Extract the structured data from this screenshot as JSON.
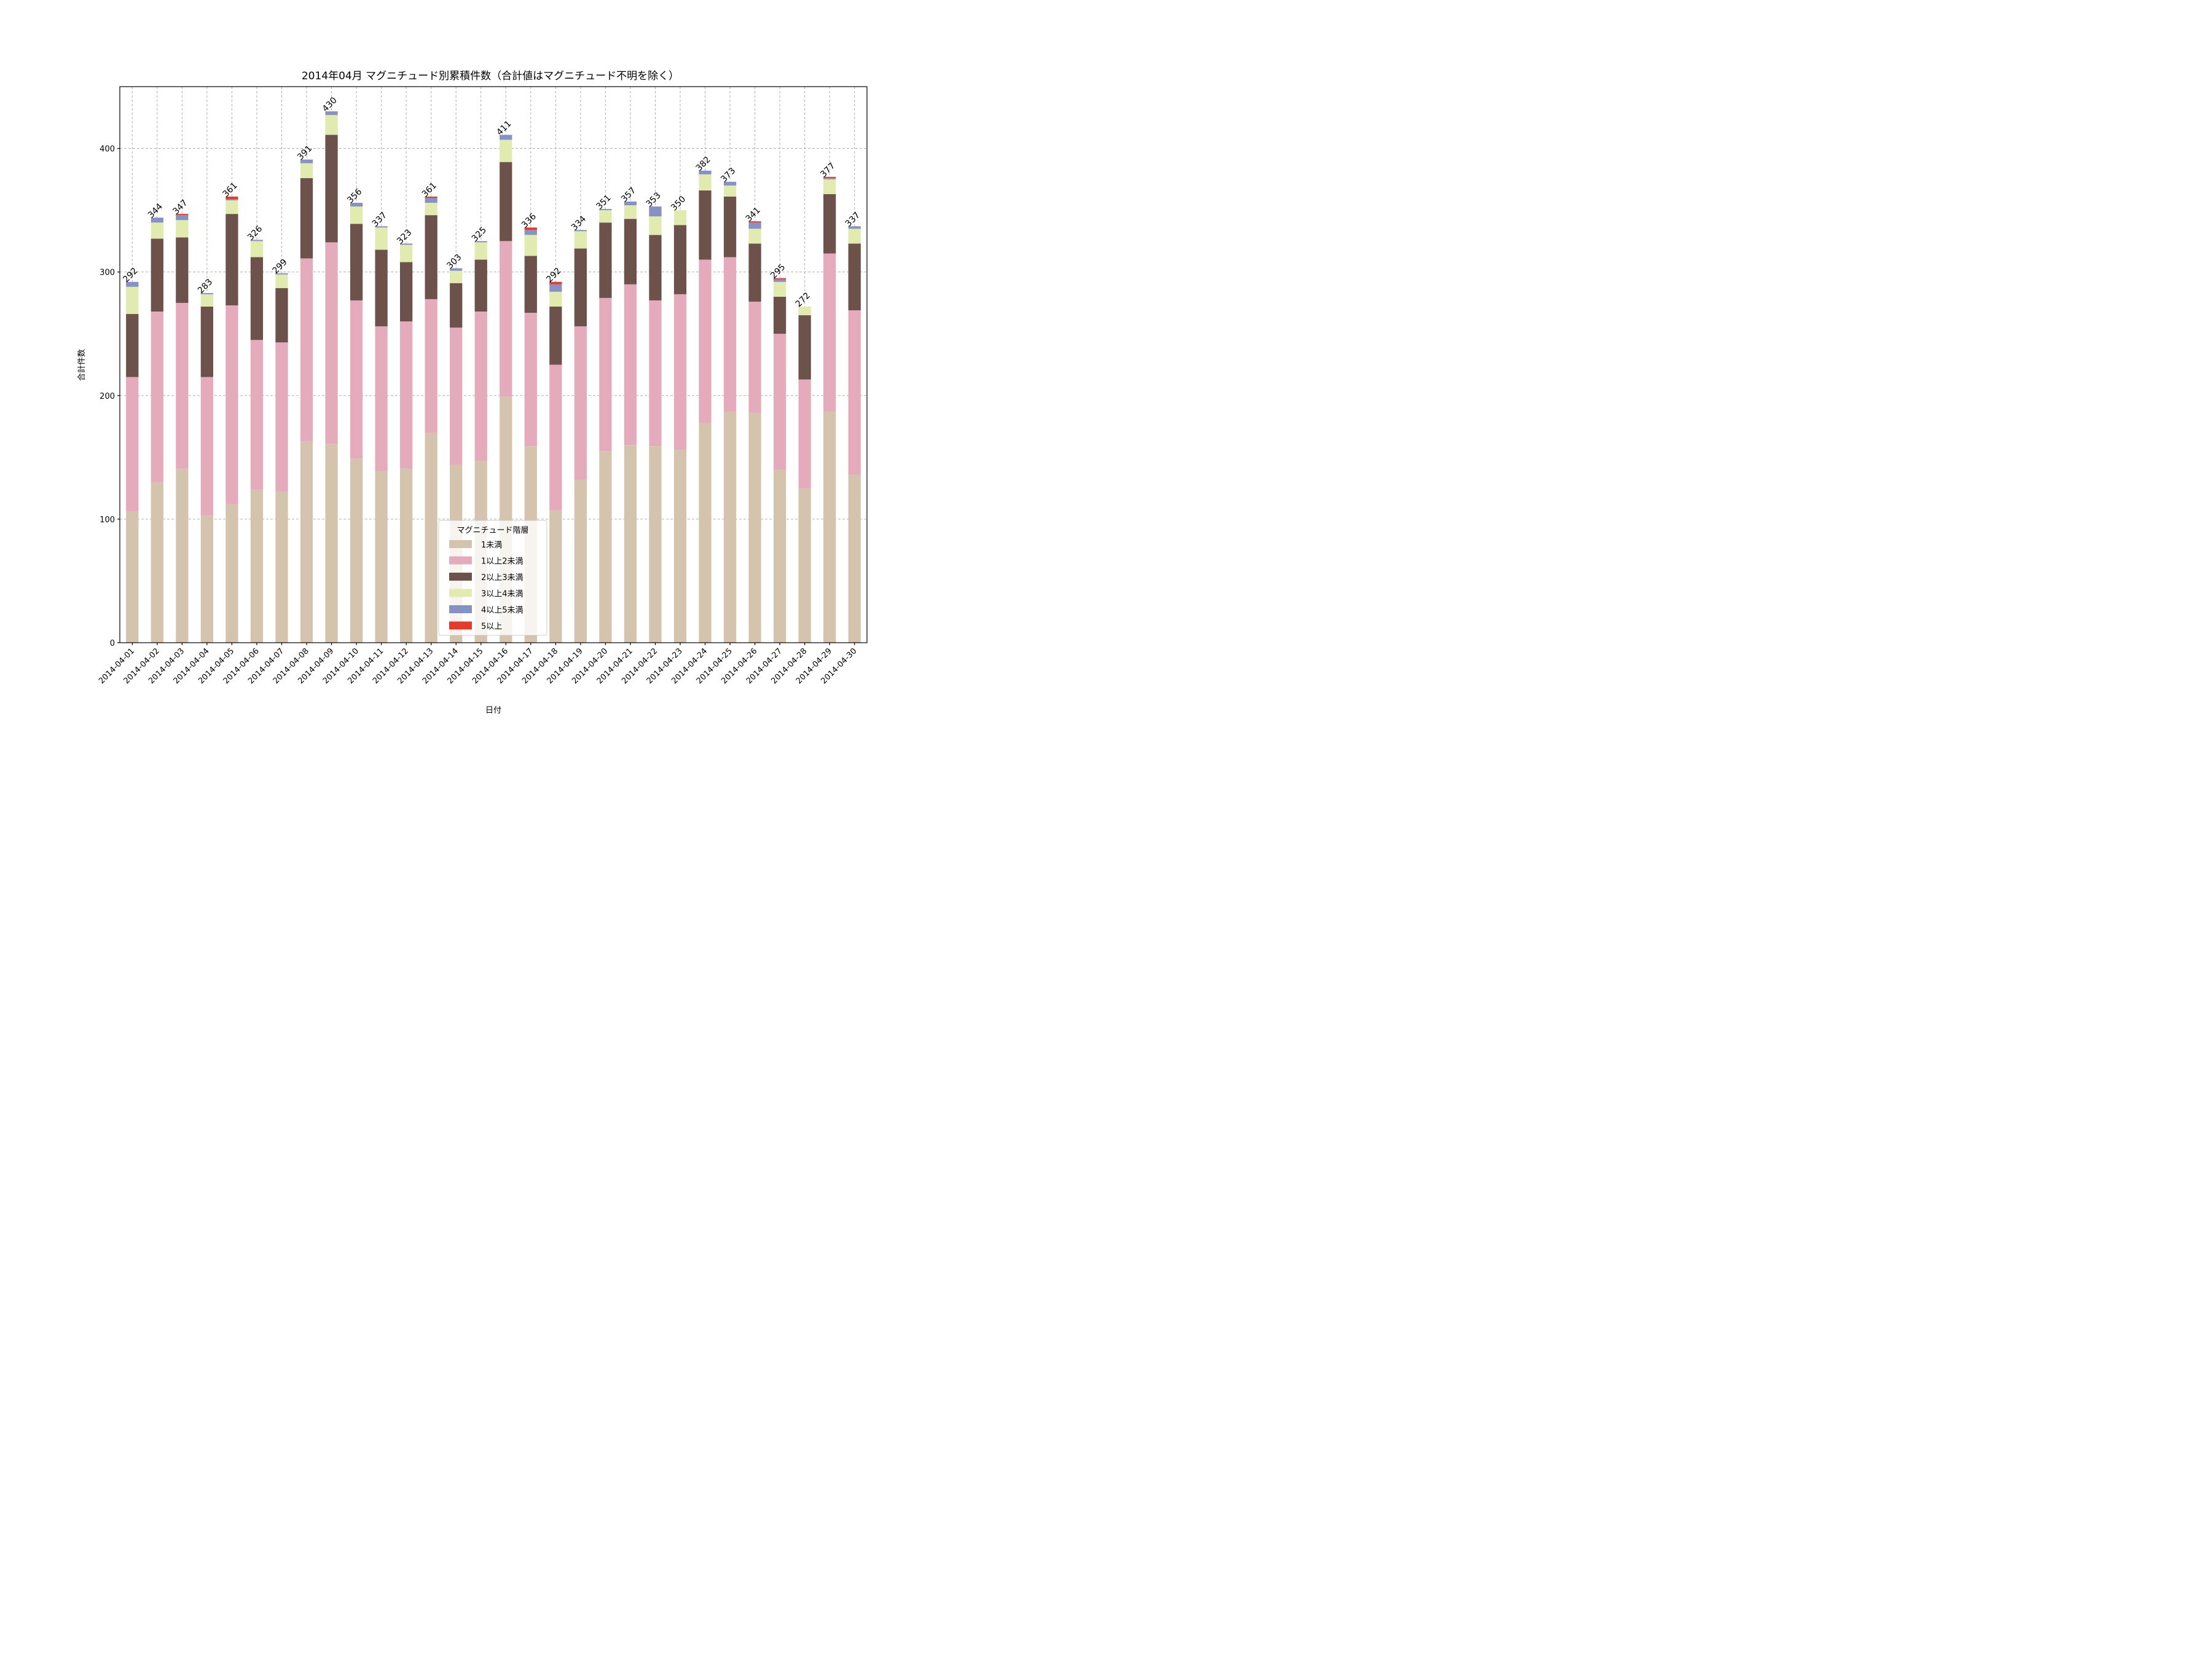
{
  "chart_data": {
    "type": "bar",
    "stacked": true,
    "title": "2014年04月 マグニチュード別累積件数（合計値はマグニチュード不明を除く）",
    "xlabel": "日付",
    "ylabel": "合計件数",
    "ylim": [
      0,
      450
    ],
    "yticks": [
      0,
      100,
      200,
      300,
      400
    ],
    "grid": true,
    "legend": {
      "title": "マグニチュード階層",
      "placement": "lower-center"
    },
    "categories": [
      "2014-04-01",
      "2014-04-02",
      "2014-04-03",
      "2014-04-04",
      "2014-04-05",
      "2014-04-06",
      "2014-04-07",
      "2014-04-08",
      "2014-04-09",
      "2014-04-10",
      "2014-04-11",
      "2014-04-12",
      "2014-04-13",
      "2014-04-14",
      "2014-04-15",
      "2014-04-16",
      "2014-04-17",
      "2014-04-18",
      "2014-04-19",
      "2014-04-20",
      "2014-04-21",
      "2014-04-22",
      "2014-04-23",
      "2014-04-24",
      "2014-04-25",
      "2014-04-26",
      "2014-04-27",
      "2014-04-28",
      "2014-04-29",
      "2014-04-30"
    ],
    "series": [
      {
        "name": "1未満",
        "color": "#d5c4ad",
        "values": [
          106,
          130,
          141,
          103,
          112,
          124,
          122,
          163,
          161,
          149,
          139,
          141,
          170,
          144,
          147,
          199,
          159,
          107,
          132,
          155,
          160,
          159,
          156,
          178,
          187,
          186,
          140,
          125,
          187,
          136
        ]
      },
      {
        "name": "1以上2未満",
        "color": "#e4abbd",
        "values": [
          109,
          138,
          134,
          112,
          161,
          121,
          121,
          148,
          163,
          128,
          117,
          119,
          108,
          111,
          121,
          126,
          108,
          118,
          124,
          124,
          130,
          118,
          126,
          132,
          125,
          90,
          110,
          88,
          128,
          133
        ]
      },
      {
        "name": "2以上3未満",
        "color": "#6d524b",
        "values": [
          51,
          59,
          53,
          57,
          74,
          67,
          44,
          65,
          87,
          62,
          62,
          48,
          68,
          36,
          42,
          64,
          46,
          47,
          63,
          61,
          53,
          53,
          56,
          56,
          49,
          47,
          30,
          52,
          48,
          54
        ]
      },
      {
        "name": "3以上4未満",
        "color": "#e1eaaf",
        "values": [
          22,
          13,
          14,
          10,
          11,
          13,
          11,
          12,
          16,
          14,
          18,
          14,
          10,
          10,
          14,
          18,
          17,
          12,
          14,
          10,
          11,
          15,
          12,
          13,
          9,
          12,
          12,
          7,
          12,
          12
        ]
      },
      {
        "name": "4以上5未満",
        "color": "#8592c3",
        "values": [
          4,
          4,
          4,
          1,
          1,
          1,
          1,
          3,
          3,
          3,
          1,
          1,
          4,
          2,
          1,
          4,
          4,
          6,
          1,
          1,
          3,
          8,
          0,
          3,
          3,
          5,
          2,
          0,
          1,
          2
        ]
      },
      {
        "name": "5以上",
        "color": "#e63a2a",
        "values": [
          0,
          0,
          1,
          0,
          2,
          0,
          0,
          0,
          0,
          0,
          0,
          0,
          1,
          0,
          0,
          0,
          2,
          2,
          0,
          0,
          0,
          0,
          0,
          0,
          0,
          1,
          1,
          0,
          1,
          0
        ]
      }
    ],
    "totals": [
      292,
      344,
      347,
      283,
      361,
      326,
      299,
      391,
      430,
      356,
      337,
      323,
      361,
      303,
      325,
      411,
      336,
      292,
      334,
      351,
      357,
      353,
      350,
      382,
      373,
      341,
      295,
      272,
      377,
      337
    ]
  }
}
